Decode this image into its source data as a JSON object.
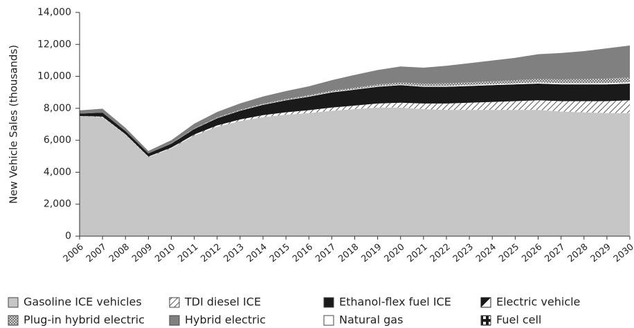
{
  "chart_data": {
    "type": "stacked_area",
    "y_label": "New Vehicle Sales (thousands)",
    "x": [
      2006,
      2007,
      2008,
      2009,
      2010,
      2011,
      2012,
      2013,
      2014,
      2015,
      2016,
      2017,
      2018,
      2019,
      2020,
      2021,
      2022,
      2023,
      2024,
      2025,
      2026,
      2027,
      2028,
      2029,
      2030
    ],
    "xlim": [
      2006,
      2030
    ],
    "ylim": [
      0,
      14000
    ],
    "yticks": [
      0,
      {
        "value": 2000,
        "label": "2,000"
      },
      {
        "value": 4000,
        "label": "4,000"
      },
      {
        "value": 6000,
        "label": "6,000"
      },
      {
        "value": 8000,
        "label": "8,000"
      },
      {
        "value": 10000,
        "label": "10,000"
      },
      {
        "value": 12000,
        "label": "12,000"
      },
      {
        "value": 14000,
        "label": "14,000"
      }
    ],
    "series": [
      {
        "name": "Gasoline ICE vehicles",
        "color": "#c6c6c6",
        "pattern": "solid",
        "values": [
          7500,
          7450,
          6350,
          4950,
          5500,
          6300,
          6850,
          7200,
          7450,
          7600,
          7700,
          7850,
          7950,
          8050,
          8050,
          7950,
          7900,
          7900,
          7900,
          7900,
          7900,
          7800,
          7750,
          7700,
          7700
        ]
      },
      {
        "name": "TDI diesel ICE",
        "color": "#555555",
        "pattern": "diagonal",
        "values": [
          20,
          30,
          30,
          30,
          40,
          60,
          80,
          100,
          120,
          150,
          180,
          200,
          220,
          250,
          300,
          350,
          400,
          450,
          500,
          550,
          600,
          650,
          700,
          750,
          800
        ]
      },
      {
        "name": "Ethanol-flex fuel ICE",
        "color": "#1a1a1a",
        "pattern": "solid",
        "values": [
          150,
          250,
          200,
          200,
          250,
          350,
          450,
          550,
          650,
          750,
          850,
          950,
          1000,
          1050,
          1100,
          1050,
          1050,
          1050,
          1050,
          1050,
          1050,
          1050,
          1050,
          1050,
          1050
        ]
      },
      {
        "name": "Electric vehicle",
        "color": "#ffffff",
        "pattern": "solid",
        "values": [
          0,
          0,
          0,
          0,
          5,
          10,
          15,
          15,
          20,
          20,
          25,
          30,
          30,
          35,
          40,
          45,
          50,
          55,
          60,
          60,
          65,
          70,
          70,
          75,
          80
        ]
      },
      {
        "name": "Plug-in hybrid electric",
        "color": "#8a8a8a",
        "pattern": "crosshatch",
        "values": [
          0,
          0,
          0,
          0,
          10,
          20,
          30,
          40,
          50,
          60,
          70,
          80,
          90,
          110,
          130,
          150,
          160,
          170,
          180,
          200,
          220,
          240,
          260,
          280,
          300
        ]
      },
      {
        "name": "Hybrid electric",
        "color": "#808080",
        "pattern": "solid",
        "values": [
          200,
          250,
          200,
          150,
          200,
          300,
          350,
          400,
          450,
          500,
          550,
          650,
          800,
          900,
          1000,
          1000,
          1100,
          1200,
          1300,
          1400,
          1550,
          1650,
          1750,
          1900,
          2000
        ]
      },
      {
        "name": "Natural gas",
        "color": "#ffffff",
        "pattern": "solid",
        "values": [
          0,
          0,
          0,
          0,
          0,
          0,
          0,
          0,
          0,
          0,
          0,
          0,
          0,
          0,
          0,
          0,
          0,
          0,
          0,
          0,
          0,
          0,
          0,
          0,
          0
        ]
      },
      {
        "name": "Fuel cell",
        "color": "#1a1a1a",
        "pattern": "checker",
        "values": [
          0,
          0,
          0,
          0,
          0,
          0,
          0,
          0,
          0,
          0,
          0,
          0,
          0,
          0,
          0,
          0,
          0,
          0,
          0,
          0,
          0,
          0,
          0,
          0,
          0
        ]
      }
    ]
  }
}
